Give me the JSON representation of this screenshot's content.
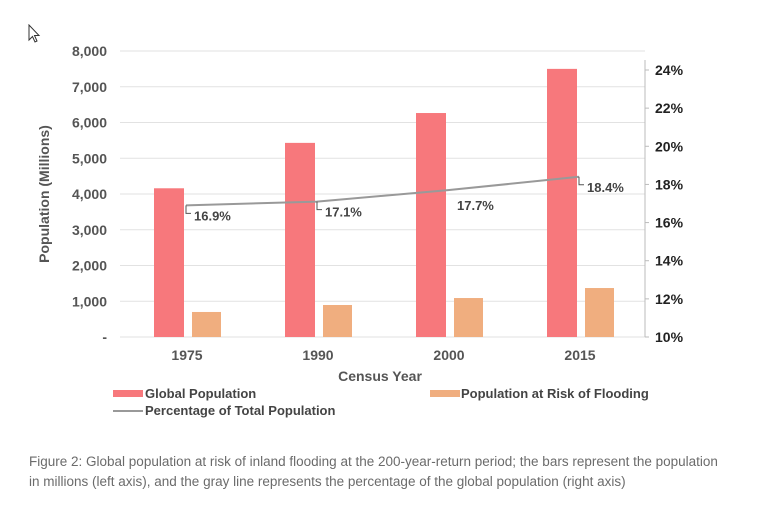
{
  "chart_data": {
    "type": "bar",
    "categories": [
      "1975",
      "1990",
      "2000",
      "2015"
    ],
    "series": [
      {
        "name": "Global Population",
        "axis": "left",
        "values": [
          4160,
          5430,
          6265,
          7500
        ],
        "color": "#f7787c"
      },
      {
        "name": "Population at Risk of Flooding",
        "axis": "left",
        "values": [
          700,
          895,
          1090,
          1370
        ],
        "color": "#f0ae7f"
      },
      {
        "name": "Percentage of Total Population",
        "axis": "right",
        "type": "line",
        "values": [
          16.9,
          17.1,
          17.7,
          18.4
        ],
        "labels": [
          "16.9%",
          "17.1%",
          "17.7%",
          "18.4%"
        ],
        "color": "#999999"
      }
    ],
    "xlabel": "Census Year",
    "ylabel": "Population (Millions)",
    "ylim": [
      0,
      8000
    ],
    "yticks": [
      0,
      1000,
      2000,
      3000,
      4000,
      5000,
      6000,
      7000,
      8000
    ],
    "ytick_labels": [
      "-",
      "1,000",
      "2,000",
      "3,000",
      "4,000",
      "5,000",
      "6,000",
      "7,000",
      "8,000"
    ],
    "y2lim": [
      10,
      24
    ],
    "y2ticks": [
      10,
      12,
      14,
      16,
      18,
      20,
      22,
      24
    ],
    "y2tick_labels": [
      "10%",
      "12%",
      "14%",
      "16%",
      "18%",
      "20%",
      "22%",
      "24%"
    ],
    "grid": true,
    "legend": "bottom"
  },
  "caption": "Figure 2: Global population at risk of inland flooding at the 200-year-return period; the bars represent the population in millions (left axis), and the gray line represents the percentage of the global population (right axis)",
  "icons": {
    "cursor": "mouse-pointer-icon"
  }
}
